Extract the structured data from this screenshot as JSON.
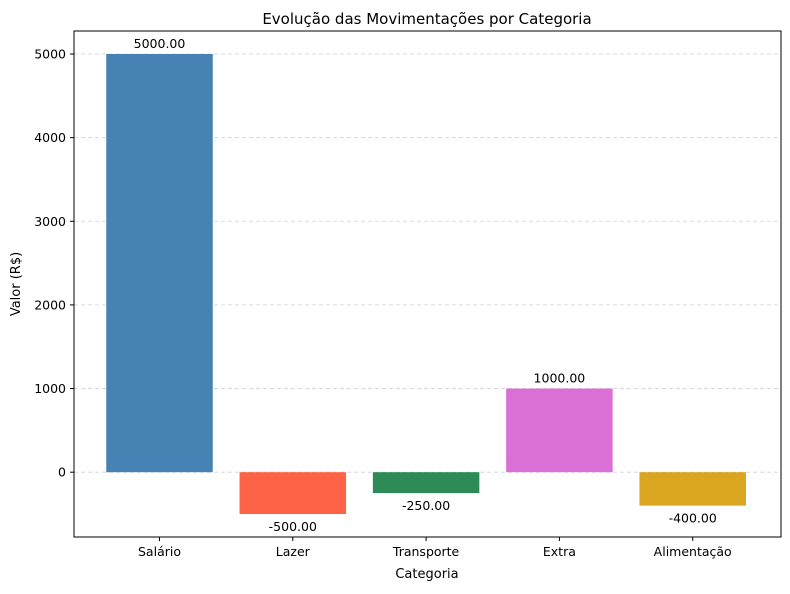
{
  "chart_data": {
    "type": "bar",
    "title": "Evolução das Movimentações por Categoria",
    "xlabel": "Categoria",
    "ylabel": "Valor (R$)",
    "categories": [
      "Salário",
      "Lazer",
      "Transporte",
      "Extra",
      "Alimentação"
    ],
    "values": [
      5000.0,
      -500.0,
      -250.0,
      1000.0,
      -400.0
    ],
    "data_labels": [
      "5000.00",
      "-500.00",
      "-250.00",
      "1000.00",
      "-400.00"
    ],
    "colors": [
      "#4682b4",
      "#ff6347",
      "#2e8b57",
      "#da70d6",
      "#daa520"
    ],
    "ylim": [
      -775,
      5275
    ],
    "yticks": [
      0,
      1000,
      2000,
      3000,
      4000,
      5000
    ],
    "grid": "y-dashed",
    "legend": "none"
  }
}
